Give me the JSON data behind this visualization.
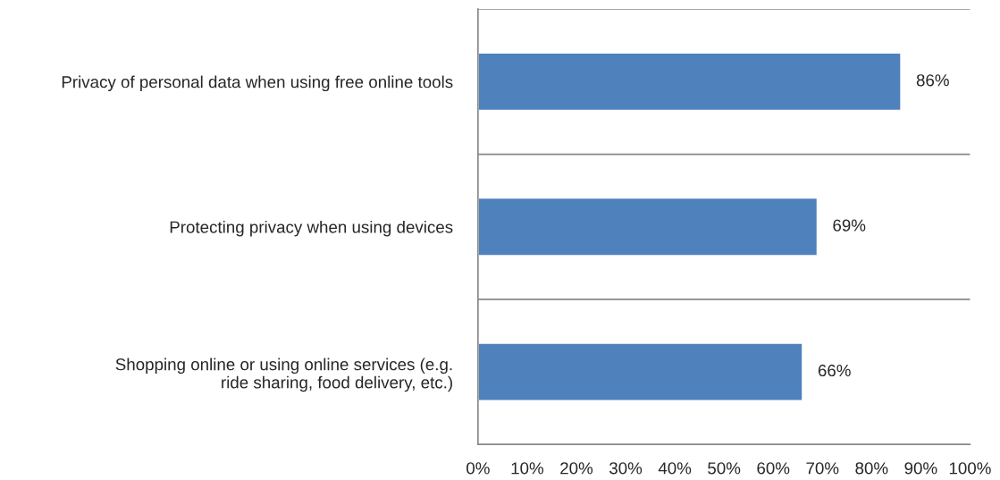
{
  "chart_data": {
    "type": "bar",
    "orientation": "horizontal",
    "categories": [
      "Privacy of personal data when using free online tools",
      "Protecting privacy when using devices",
      "Shopping online or using online services (e.g.\nride sharing, food delivery, etc.)"
    ],
    "values": [
      86,
      69,
      66
    ],
    "color": "#4f81bd",
    "value_labels": [
      "86%",
      "69%",
      "66%"
    ],
    "xlim": [
      0,
      100
    ],
    "xticks": [
      {
        "value": 0,
        "label": "0%"
      },
      {
        "value": 10,
        "label": "10%"
      },
      {
        "value": 20,
        "label": "20%"
      },
      {
        "value": 30,
        "label": "30%"
      },
      {
        "value": 40,
        "label": "40%"
      },
      {
        "value": 50,
        "label": "50%"
      },
      {
        "value": 60,
        "label": "60%"
      },
      {
        "value": 70,
        "label": "70%"
      },
      {
        "value": 80,
        "label": "80%"
      },
      {
        "value": 90,
        "label": "90%"
      },
      {
        "value": 100,
        "label": "100%"
      }
    ],
    "grid": "y"
  }
}
